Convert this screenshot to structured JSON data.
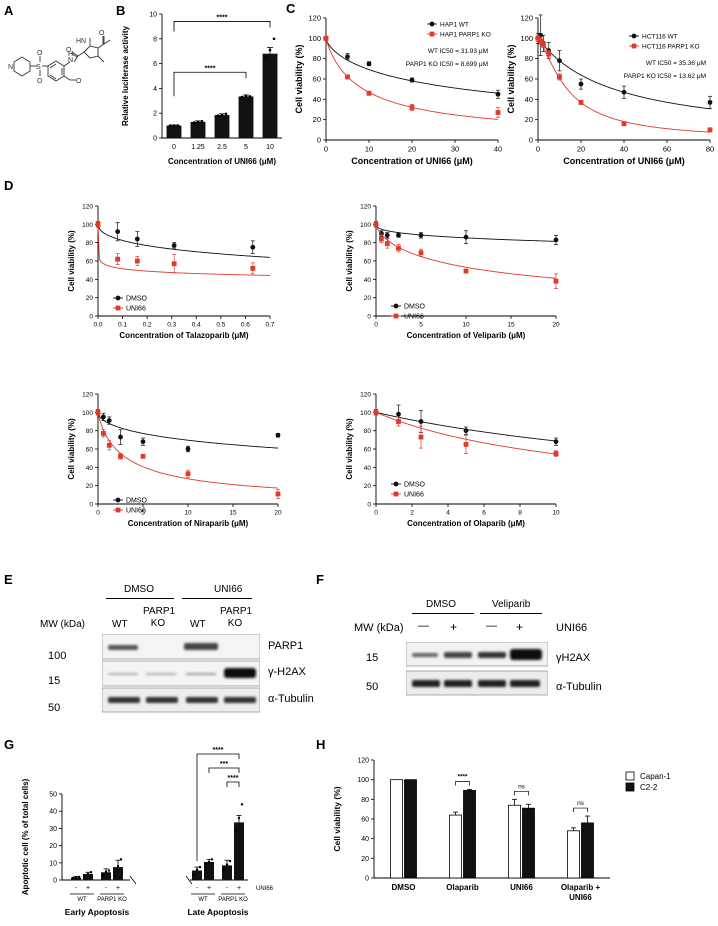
{
  "panels": {
    "A": "A",
    "B": "B",
    "C": "C",
    "D": "D",
    "E": "E",
    "F": "F",
    "G": "G",
    "H": "H"
  },
  "chart_data": [
    {
      "id": "B",
      "type": "bar",
      "categories": [
        "0",
        "1.25",
        "2.5",
        "5",
        "10"
      ],
      "values": [
        1.0,
        1.3,
        1.85,
        3.35,
        6.8
      ],
      "errors": [
        0.05,
        0.08,
        0.1,
        0.12,
        0.5
      ],
      "points": [
        [
          1.0,
          1.0,
          1.0
        ],
        [
          1.25,
          1.3,
          1.35
        ],
        [
          1.8,
          1.85,
          1.95
        ],
        [
          3.3,
          3.4,
          3.35
        ],
        [
          6.5,
          7.1,
          8.0
        ]
      ],
      "xlabel": "Concentration of UNI66 (μM)",
      "ylabel": "Relative luciferase activity",
      "ylim": [
        0,
        10
      ],
      "yticks": [
        0,
        2,
        4,
        6,
        8,
        10
      ],
      "significance": [
        {
          "from": 0,
          "to": 3,
          "label": "****"
        },
        {
          "from": 0,
          "to": 4,
          "label": "****"
        }
      ]
    },
    {
      "id": "C1",
      "type": "line",
      "xlabel": "Concentration of UNI66 (μM)",
      "ylabel": "Cell viability (%)",
      "xlim": [
        0,
        40
      ],
      "ylim": [
        0,
        120
      ],
      "xticks": [
        0,
        10,
        20,
        30,
        40
      ],
      "yticks": [
        0,
        20,
        40,
        60,
        80,
        100,
        120
      ],
      "legend": [
        "HAP1 WT",
        "HAP1 PARP1 KO"
      ],
      "annotations": [
        {
          "text": "WT IC50 = 31.93 μM"
        },
        {
          "text": "PARP1 KO IC50 = 8.699 μM"
        }
      ],
      "series": [
        {
          "name": "HAP1 WT",
          "color": "#111111",
          "ic50": 31.93,
          "hill": 0.7,
          "x": [
            0,
            5,
            10,
            20,
            40
          ],
          "y": [
            100,
            82,
            75,
            59,
            45
          ],
          "err": [
            2,
            3,
            2,
            2,
            4
          ]
        },
        {
          "name": "HAP1 PARP1 KO",
          "color": "#e03a2c",
          "ic50": 8.699,
          "hill": 0.9,
          "x": [
            0,
            5,
            10,
            20,
            40
          ],
          "y": [
            100,
            62,
            46,
            32,
            27
          ],
          "err": [
            2,
            2,
            2,
            3,
            5
          ]
        }
      ]
    },
    {
      "id": "C2",
      "type": "line",
      "xlabel": "Concentration of UNI66 (μM)",
      "ylabel": "Cell viability (%)",
      "xlim": [
        0,
        80
      ],
      "ylim": [
        0,
        120
      ],
      "xticks": [
        0,
        20,
        40,
        60,
        80
      ],
      "yticks": [
        0,
        20,
        40,
        60,
        80,
        100,
        120
      ],
      "legend": [
        "HCT116 WT",
        "HCT116 PARP1 KO"
      ],
      "annotations": [
        {
          "text": "WT IC50 = 35.36 μM"
        },
        {
          "text": "PARP1 KO IC50 = 13.62 μM"
        }
      ],
      "series": [
        {
          "name": "HCT116 WT",
          "color": "#111111",
          "ic50": 35.36,
          "hill": 1.0,
          "x": [
            0,
            1.25,
            2.5,
            5,
            10,
            20,
            40,
            80
          ],
          "y": [
            100,
            103,
            95,
            88,
            78,
            55,
            47,
            37
          ],
          "err": [
            5,
            20,
            8,
            8,
            10,
            5,
            6,
            6
          ]
        },
        {
          "name": "HCT116 PARP1 KO",
          "color": "#e03a2c",
          "ic50": 13.62,
          "hill": 1.4,
          "x": [
            0,
            1.25,
            2.5,
            5,
            10,
            20,
            40,
            80
          ],
          "y": [
            100,
            97,
            94,
            85,
            62,
            37,
            16,
            10
          ],
          "err": [
            3,
            3,
            3,
            3,
            3,
            2,
            2,
            2
          ]
        }
      ]
    },
    {
      "id": "D1",
      "type": "line",
      "xlabel": "Concentration of Talazoparib (μM)",
      "ylabel": "Cell viability (%)",
      "xlim": [
        0,
        0.7
      ],
      "ylim": [
        0,
        120
      ],
      "xticks": [
        0.0,
        0.1,
        0.2,
        0.3,
        0.4,
        0.5,
        0.6,
        0.7
      ],
      "yticks": [
        0,
        20,
        40,
        60,
        80,
        100,
        120
      ],
      "legend": [
        "DMSO",
        "UNI66"
      ],
      "series": [
        {
          "name": "DMSO",
          "color": "#111111",
          "ic50": 2.2,
          "hill": 0.5,
          "x": [
            0,
            0.08,
            0.16,
            0.31,
            0.63
          ],
          "y": [
            100,
            92,
            84,
            77,
            75
          ],
          "err": [
            3,
            10,
            8,
            3,
            7
          ]
        },
        {
          "name": "UNI66",
          "color": "#e03a2c",
          "ic50": 0.15,
          "hill": 0.15,
          "x": [
            0,
            0.08,
            0.16,
            0.31,
            0.63
          ],
          "y": [
            100,
            62,
            60,
            57,
            52
          ],
          "err": [
            3,
            6,
            5,
            10,
            6
          ]
        }
      ]
    },
    {
      "id": "D2",
      "type": "line",
      "xlabel": "Concentration of Veliparib (μM)",
      "ylabel": "Cell viability (%)",
      "xlim": [
        0,
        20
      ],
      "ylim": [
        0,
        120
      ],
      "xticks": [
        0,
        5,
        10,
        15,
        20
      ],
      "yticks": [
        0,
        20,
        40,
        60,
        80,
        100,
        120
      ],
      "legend": [
        "DMSO",
        "UNI66"
      ],
      "series": [
        {
          "name": "DMSO",
          "color": "#111111",
          "ic50": 800,
          "hill": 0.4,
          "x": [
            0,
            0.6,
            1.25,
            2.5,
            5,
            10,
            20
          ],
          "y": [
            100,
            90,
            88,
            88,
            88,
            86,
            83
          ],
          "err": [
            3,
            3,
            3,
            2,
            3,
            7,
            5
          ]
        },
        {
          "name": "UNI66",
          "color": "#e03a2c",
          "ic50": 12,
          "hill": 0.7,
          "x": [
            0,
            0.6,
            1.25,
            2.5,
            5,
            10,
            20
          ],
          "y": [
            100,
            84,
            79,
            74,
            69,
            49,
            38
          ],
          "err": [
            3,
            4,
            5,
            4,
            4,
            2,
            8
          ]
        }
      ]
    },
    {
      "id": "D3",
      "type": "line",
      "xlabel": "Concentration of Niraparib (μM)",
      "ylabel": "Cell viability (%)",
      "xlim": [
        0,
        20
      ],
      "ylim": [
        0,
        120
      ],
      "xticks": [
        0,
        5,
        10,
        15,
        20
      ],
      "yticks": [
        0,
        20,
        40,
        60,
        80,
        100,
        120
      ],
      "legend": [
        "DMSO",
        "UNI66"
      ],
      "series": [
        {
          "name": "DMSO",
          "color": "#111111",
          "ic50": 45,
          "hill": 0.55,
          "x": [
            0,
            0.6,
            1.25,
            2.5,
            5,
            10,
            20
          ],
          "y": [
            100,
            95,
            91,
            73,
            68,
            60,
            75
          ],
          "err": [
            3,
            4,
            4,
            8,
            4,
            3,
            2
          ]
        },
        {
          "name": "UNI66",
          "color": "#e03a2c",
          "ic50": 3.2,
          "hill": 0.85,
          "x": [
            0,
            0.6,
            1.25,
            2.5,
            5,
            10,
            20
          ],
          "y": [
            100,
            77,
            64,
            52,
            52,
            33,
            11
          ],
          "err": [
            3,
            4,
            5,
            3,
            2,
            4,
            5
          ]
        }
      ]
    },
    {
      "id": "D4",
      "type": "line",
      "xlabel": "Concentration of Olaparib (μM)",
      "ylabel": "Cell viability (%)",
      "xlim": [
        0,
        10
      ],
      "ylim": [
        0,
        120
      ],
      "xticks": [
        0,
        2,
        4,
        6,
        8,
        10
      ],
      "yticks": [
        0,
        20,
        40,
        60,
        80,
        100,
        120
      ],
      "legend": [
        "DMSO",
        "UNI66"
      ],
      "series": [
        {
          "name": "DMSO",
          "color": "#111111",
          "ic50": 22,
          "hill": 1.0,
          "x": [
            0,
            1.25,
            2.5,
            5,
            10
          ],
          "y": [
            100,
            98,
            90,
            80,
            68
          ],
          "err": [
            3,
            10,
            12,
            4,
            4
          ]
        },
        {
          "name": "UNI66",
          "color": "#e03a2c",
          "ic50": 12,
          "hill": 1.0,
          "x": [
            0,
            1.25,
            2.5,
            5,
            10
          ],
          "y": [
            100,
            90,
            73,
            65,
            55
          ],
          "err": [
            3,
            5,
            12,
            10,
            3
          ]
        }
      ]
    },
    {
      "id": "G",
      "type": "bar",
      "ylabel": "Apoptotic cell (% of total cells)",
      "ylim": [
        0,
        50
      ],
      "yticks": [
        0,
        10,
        20,
        30,
        40,
        50
      ],
      "groups": [
        "Early Apoptosis",
        "Late Apoptosis"
      ],
      "uni66_row": [
        "-",
        "+",
        "-",
        "+",
        "-",
        "+",
        "-",
        "+"
      ],
      "uni66_label": "UNI66",
      "genotype_labels": [
        "WT",
        "PARP1 KO",
        "WT",
        "PARP1 KO"
      ],
      "values": [
        1.5,
        3.5,
        4.5,
        7.5,
        5.5,
        10.5,
        8.5,
        33.5
      ],
      "errors": [
        0.5,
        1,
        2,
        4,
        2,
        1.5,
        3,
        4
      ],
      "points": [
        [
          1.2,
          1.6,
          1.8
        ],
        [
          2.5,
          3.5,
          4.5
        ],
        [
          2.8,
          4.8,
          5.5
        ],
        [
          2.5,
          8,
          12
        ],
        [
          3,
          6,
          7.5
        ],
        [
          9.5,
          10.5,
          12
        ],
        [
          6,
          9,
          11
        ],
        [
          29,
          36,
          44
        ]
      ],
      "significance": [
        {
          "label": "****"
        },
        {
          "label": "***"
        },
        {
          "label": "****"
        }
      ]
    },
    {
      "id": "H",
      "type": "bar",
      "categories": [
        "DMSO",
        "Olaparib",
        "UNI66",
        "Olaparib + UNI66"
      ],
      "ylabel": "Cell viability (%)",
      "ylim": [
        0,
        120
      ],
      "yticks": [
        0,
        20,
        40,
        60,
        80,
        100,
        120
      ],
      "series": [
        {
          "name": "Capan-1",
          "values": [
            100,
            64,
            74,
            48
          ],
          "errors": [
            0,
            3,
            6,
            3
          ]
        },
        {
          "name": "C2-2",
          "values": [
            100,
            89,
            71,
            56
          ],
          "errors": [
            0,
            1,
            4,
            7
          ]
        }
      ],
      "significance": [
        {
          "label": "****"
        },
        {
          "label": "ns"
        },
        {
          "label": "ns"
        }
      ]
    }
  ],
  "blot_E": {
    "treatments": [
      "DMSO",
      "UNI66"
    ],
    "lanes": [
      "WT",
      "PARP1 KO",
      "WT",
      "PARP1 KO"
    ],
    "mw_header": "MW (kDa)",
    "rows": [
      {
        "mw": "100",
        "label": "PARP1"
      },
      {
        "mw": "15",
        "label": "γ-H2AX"
      },
      {
        "mw": "50",
        "label": "α-Tubulin"
      }
    ]
  },
  "blot_F": {
    "treatments": [
      "DMSO",
      "Veliparib"
    ],
    "mw_header": "MW (kDa)",
    "uni66_signs": [
      "—",
      "+",
      "—",
      "+"
    ],
    "uni66_label": "UNI66",
    "rows": [
      {
        "mw": "15",
        "label": "γH2AX"
      },
      {
        "mw": "50",
        "label": "α-Tubulin"
      }
    ]
  }
}
